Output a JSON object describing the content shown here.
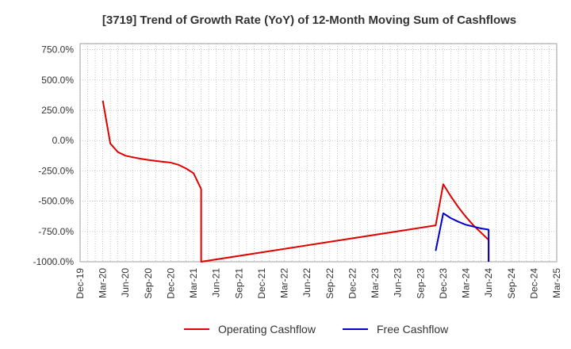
{
  "chart_data": {
    "type": "line",
    "title": "[3719]  Trend of Growth Rate (YoY) of 12-Month Moving Sum of Cashflows",
    "xlabel": "",
    "ylabel": "",
    "x_tick_labels": [
      "Dec-19",
      "Mar-20",
      "Jun-20",
      "Sep-20",
      "Dec-20",
      "Mar-21",
      "Jun-21",
      "Sep-21",
      "Dec-21",
      "Mar-22",
      "Jun-22",
      "Sep-22",
      "Dec-22",
      "Mar-23",
      "Jun-23",
      "Sep-23",
      "Dec-23",
      "Mar-24",
      "Jun-24",
      "Sep-24",
      "Dec-24",
      "Mar-25"
    ],
    "y_tick_labels": [
      "750.0%",
      "500.0%",
      "250.0%",
      "0.0%",
      "-250.0%",
      "-500.0%",
      "-750.0%",
      "-1000.0%"
    ],
    "y_ticks": [
      750,
      500,
      250,
      0,
      -250,
      -500,
      -750,
      -1000
    ],
    "ylim": [
      -1000,
      800
    ],
    "x_range": [
      "2019-12",
      "2025-03"
    ],
    "grid": true,
    "legend_position": "bottom",
    "series": [
      {
        "name": "Operating Cashflow",
        "color": "#e00000",
        "points": [
          {
            "x": "2020-03",
            "y": 330
          },
          {
            "x": "2020-04",
            "y": -25
          },
          {
            "x": "2020-05",
            "y": -95
          },
          {
            "x": "2020-06",
            "y": -125
          },
          {
            "x": "2020-07",
            "y": -138
          },
          {
            "x": "2020-08",
            "y": -150
          },
          {
            "x": "2020-09",
            "y": -160
          },
          {
            "x": "2020-10",
            "y": -168
          },
          {
            "x": "2020-11",
            "y": -175
          },
          {
            "x": "2020-12",
            "y": -182
          },
          {
            "x": "2021-01",
            "y": -200
          },
          {
            "x": "2021-02",
            "y": -230
          },
          {
            "x": "2021-03",
            "y": -270
          },
          {
            "x": "2021-04",
            "y": -400
          },
          {
            "x": "2021-04",
            "y": -1000
          },
          {
            "x": "2023-11",
            "y": -700
          },
          {
            "x": "2023-12",
            "y": -360
          },
          {
            "x": "2024-01",
            "y": -460
          },
          {
            "x": "2024-02",
            "y": -550
          },
          {
            "x": "2024-03",
            "y": -630
          },
          {
            "x": "2024-04",
            "y": -700
          },
          {
            "x": "2024-05",
            "y": -760
          },
          {
            "x": "2024-06",
            "y": -820
          },
          {
            "x": "2024-06",
            "y": -1000
          }
        ]
      },
      {
        "name": "Free Cashflow",
        "color": "#0000cc",
        "points": [
          {
            "x": "2023-11",
            "y": -910
          },
          {
            "x": "2023-12",
            "y": -600
          },
          {
            "x": "2024-01",
            "y": -640
          },
          {
            "x": "2024-02",
            "y": -670
          },
          {
            "x": "2024-03",
            "y": -695
          },
          {
            "x": "2024-04",
            "y": -710
          },
          {
            "x": "2024-05",
            "y": -725
          },
          {
            "x": "2024-06",
            "y": -735
          },
          {
            "x": "2024-06",
            "y": -1000
          }
        ]
      }
    ]
  }
}
